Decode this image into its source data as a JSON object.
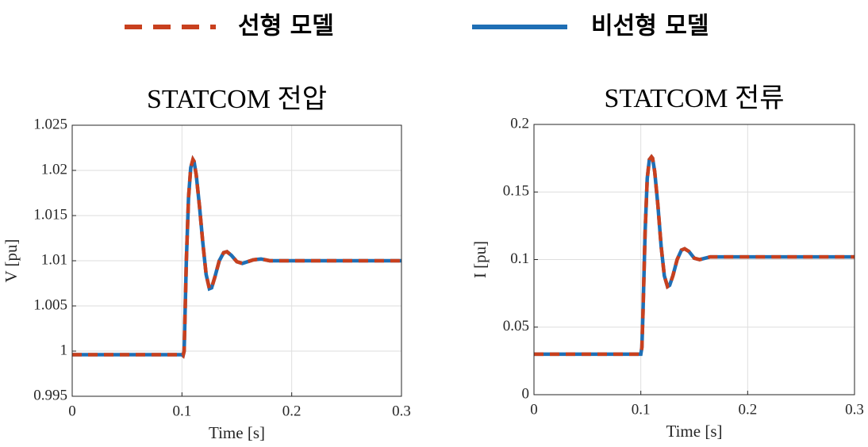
{
  "chart_data": [
    {
      "type": "line",
      "title": "STATCOM 전압",
      "xlabel": "Time [s]",
      "ylabel": "V [pu]",
      "x": [
        0,
        0.1,
        0.101,
        0.102,
        0.104,
        0.106,
        0.108,
        0.11,
        0.111,
        0.113,
        0.116,
        0.119,
        0.122,
        0.125,
        0.127,
        0.13,
        0.134,
        0.138,
        0.141,
        0.145,
        0.15,
        0.155,
        0.16,
        0.165,
        0.172,
        0.18,
        0.2,
        0.3
      ],
      "series": [
        {
          "name": "비선형 모델",
          "color": "#1f6fb5",
          "style": "solid",
          "values": [
            0.9996,
            0.9996,
            0.9995,
            1.0,
            1.01,
            1.017,
            1.0203,
            1.0212,
            1.021,
            1.0195,
            1.016,
            1.012,
            1.0085,
            1.0069,
            1.007,
            1.0082,
            1.01,
            1.0109,
            1.011,
            1.0106,
            1.0099,
            1.0097,
            1.0099,
            1.0101,
            1.0102,
            1.01,
            1.01,
            1.01
          ]
        },
        {
          "name": "선형 모델",
          "color": "#c8401e",
          "style": "dashed",
          "values": [
            0.9996,
            0.9996,
            0.9995,
            1.0,
            1.01,
            1.017,
            1.0203,
            1.0212,
            1.021,
            1.0195,
            1.016,
            1.012,
            1.0085,
            1.0069,
            1.007,
            1.0082,
            1.01,
            1.0109,
            1.011,
            1.0106,
            1.0099,
            1.0097,
            1.0099,
            1.0101,
            1.0102,
            1.01,
            1.01,
            1.01
          ]
        }
      ],
      "xlim": [
        0,
        0.3
      ],
      "xticks": [
        0,
        0.1,
        0.2,
        0.3
      ],
      "ylim": [
        0.995,
        1.025
      ],
      "yticks": [
        0.995,
        1,
        1.005,
        1.01,
        1.015,
        1.02,
        1.025
      ],
      "grid": true
    },
    {
      "type": "line",
      "title": "STATCOM 전류",
      "xlabel": "Time [s]",
      "ylabel": "I [pu]",
      "x": [
        0,
        0.1,
        0.101,
        0.102,
        0.104,
        0.106,
        0.108,
        0.11,
        0.111,
        0.113,
        0.116,
        0.119,
        0.122,
        0.125,
        0.127,
        0.13,
        0.134,
        0.138,
        0.141,
        0.145,
        0.15,
        0.155,
        0.16,
        0.165,
        0.172,
        0.18,
        0.2,
        0.3
      ],
      "series": [
        {
          "name": "비선형 모델",
          "color": "#1f6fb5",
          "style": "solid",
          "values": [
            0.03,
            0.03,
            0.035,
            0.06,
            0.12,
            0.16,
            0.174,
            0.176,
            0.175,
            0.165,
            0.14,
            0.11,
            0.088,
            0.08,
            0.081,
            0.088,
            0.1,
            0.107,
            0.108,
            0.106,
            0.101,
            0.1,
            0.101,
            0.102,
            0.102,
            0.102,
            0.102,
            0.102
          ]
        },
        {
          "name": "선형 모델",
          "color": "#c8401e",
          "style": "dashed",
          "values": [
            0.03,
            0.03,
            0.035,
            0.06,
            0.12,
            0.16,
            0.174,
            0.176,
            0.175,
            0.165,
            0.14,
            0.11,
            0.088,
            0.08,
            0.081,
            0.088,
            0.1,
            0.107,
            0.108,
            0.106,
            0.101,
            0.1,
            0.101,
            0.102,
            0.102,
            0.102,
            0.102,
            0.102
          ]
        }
      ],
      "xlim": [
        0,
        0.3
      ],
      "xticks": [
        0,
        0.1,
        0.2,
        0.3
      ],
      "ylim": [
        0,
        0.2
      ],
      "yticks": [
        0,
        0.05,
        0.1,
        0.15,
        0.2
      ],
      "grid": true
    }
  ]
}
